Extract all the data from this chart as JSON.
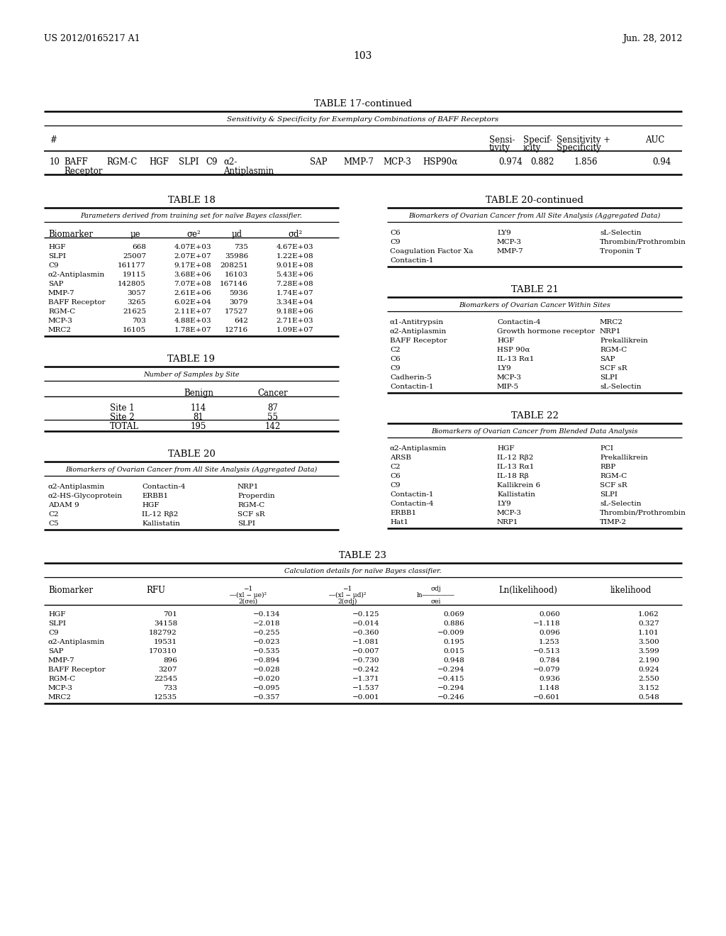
{
  "bg_color": "#ffffff",
  "header_left": "US 2012/0165217 A1",
  "header_right": "Jun. 28, 2012",
  "page_num": "103",
  "table17_continued": {
    "title": "TABLE 17-continued",
    "subtitle": "Sensitivity & Specificity for Exemplary Combinations of BAFF Receptors"
  },
  "table18": {
    "title": "TABLE 18",
    "subtitle": "Parameters derived from training set for naïve Bayes classifier.",
    "rows": [
      [
        "HGF",
        "668",
        "4.07E+03",
        "735",
        "4.67E+03"
      ],
      [
        "SLPI",
        "25007",
        "2.07E+07",
        "35986",
        "1.22E+08"
      ],
      [
        "C9",
        "161177",
        "9.17E+08",
        "208251",
        "9.01E+08"
      ],
      [
        "α2-Antiplasmin",
        "19115",
        "3.68E+06",
        "16103",
        "5.43E+06"
      ],
      [
        "SAP",
        "142805",
        "7.07E+08",
        "167146",
        "7.28E+08"
      ],
      [
        "MMP-7",
        "3057",
        "2.61E+06",
        "5936",
        "1.74E+07"
      ],
      [
        "BAFF Receptor",
        "3265",
        "6.02E+04",
        "3079",
        "3.34E+04"
      ],
      [
        "RGM-C",
        "21625",
        "2.11E+07",
        "17527",
        "9.18E+06"
      ],
      [
        "MCP-3",
        "703",
        "4.88E+03",
        "642",
        "2.71E+03"
      ],
      [
        "MRC2",
        "16105",
        "1.78E+07",
        "12716",
        "1.09E+07"
      ]
    ]
  },
  "table19": {
    "title": "TABLE 19",
    "subtitle": "Number of Samples by Site",
    "rows": [
      [
        "Site 1",
        "114",
        "87"
      ],
      [
        "Site 2",
        "81",
        "55"
      ],
      [
        "TOTAL",
        "195",
        "142"
      ]
    ]
  },
  "table20": {
    "title": "TABLE 20",
    "subtitle": "Biomarkers of Ovarian Cancer from All Site Analysis (Aggregated Data)",
    "col1": [
      "α2-Antiplasmin",
      "α2-HS-Glycoprotein",
      "ADAM 9",
      "C2",
      "C5"
    ],
    "col2": [
      "Contactin-4",
      "ERBB1",
      "HGF",
      "IL-12 Rβ2",
      "Kallistatin"
    ],
    "col3": [
      "NRP1",
      "Properdin",
      "RGM-C",
      "SCF sR",
      "SLPI"
    ]
  },
  "table20_continued": {
    "title": "TABLE 20-continued",
    "subtitle": "Biomarkers of Ovarian Cancer from All Site Analysis (Aggregated Data)",
    "col1": [
      "C6",
      "C9",
      "Coagulation Factor Xa",
      "Contactin-1"
    ],
    "col2": [
      "LY9",
      "MCP-3",
      "MMP-7",
      ""
    ],
    "col3": [
      "sL-Selectin",
      "Thrombin/Prothrombin",
      "Troponin T",
      ""
    ]
  },
  "table21": {
    "title": "TABLE 21",
    "subtitle": "Biomarkers of Ovarian Cancer Within Sites",
    "col1": [
      "α1-Antitrypsin",
      "α2-Antiplasmin",
      "BAFF Receptor",
      "C2",
      "C6",
      "C9",
      "Cadherin-5",
      "Contactin-1"
    ],
    "col2": [
      "Contactin-4",
      "Growth hormone receptor",
      "HGF",
      "HSP 90α",
      "IL-13 Rα1",
      "LY9",
      "MCP-3",
      "MIP-5"
    ],
    "col3": [
      "MRC2",
      "NRP1",
      "Prekallikrein",
      "RGM-C",
      "SAP",
      "SCF sR",
      "SLPI",
      "sL-Selectin"
    ]
  },
  "table22": {
    "title": "TABLE 22",
    "subtitle": "Biomarkers of Ovarian Cancer from Blended Data Analysis",
    "col1": [
      "α2-Antiplasmin",
      "ARSB",
      "C2",
      "C6",
      "C9",
      "Contactin-1",
      "Contactin-4",
      "ERBB1",
      "Hat1"
    ],
    "col2": [
      "HGF",
      "IL-12 Rβ2",
      "IL-13 Rα1",
      "IL-18 Rβ",
      "Kallikrein 6",
      "Kallistatin",
      "LY9",
      "MCP-3",
      "NRP1"
    ],
    "col3": [
      "PCI",
      "Prekallikrein",
      "RBP",
      "RGM-C",
      "SCF sR",
      "SLPI",
      "sL-Selectin",
      "Thrombin/Prothrombin",
      "TIMP-2"
    ]
  },
  "table23": {
    "title": "TABLE 23",
    "subtitle": "Calculation details for naïve Bayes classifier.",
    "rows": [
      [
        "HGF",
        "701",
        "−0.134",
        "−0.125",
        "0.069",
        "0.060",
        "1.062"
      ],
      [
        "SLPI",
        "34158",
        "−2.018",
        "−0.014",
        "0.886",
        "−1.118",
        "0.327"
      ],
      [
        "C9",
        "182792",
        "−0.255",
        "−0.360",
        "−0.009",
        "0.096",
        "1.101"
      ],
      [
        "α2-Antiplasmin",
        "19531",
        "−0.023",
        "−1.081",
        "0.195",
        "1.253",
        "3.500"
      ],
      [
        "SAP",
        "170310",
        "−0.535",
        "−0.007",
        "0.015",
        "−0.513",
        "3.599"
      ],
      [
        "MMP-7",
        "896",
        "−0.894",
        "−0.730",
        "0.948",
        "0.784",
        "2.190"
      ],
      [
        "BAFF Receptor",
        "3207",
        "−0.028",
        "−0.242",
        "−0.294",
        "−0.079",
        "0.924"
      ],
      [
        "RGM-C",
        "22545",
        "−0.020",
        "−1.371",
        "−0.415",
        "0.936",
        "2.550"
      ],
      [
        "MCP-3",
        "733",
        "−0.095",
        "−1.537",
        "−0.294",
        "1.148",
        "3.152"
      ],
      [
        "MRC2",
        "12535",
        "−0.357",
        "−0.001",
        "−0.246",
        "−0.601",
        "0.548"
      ]
    ]
  }
}
